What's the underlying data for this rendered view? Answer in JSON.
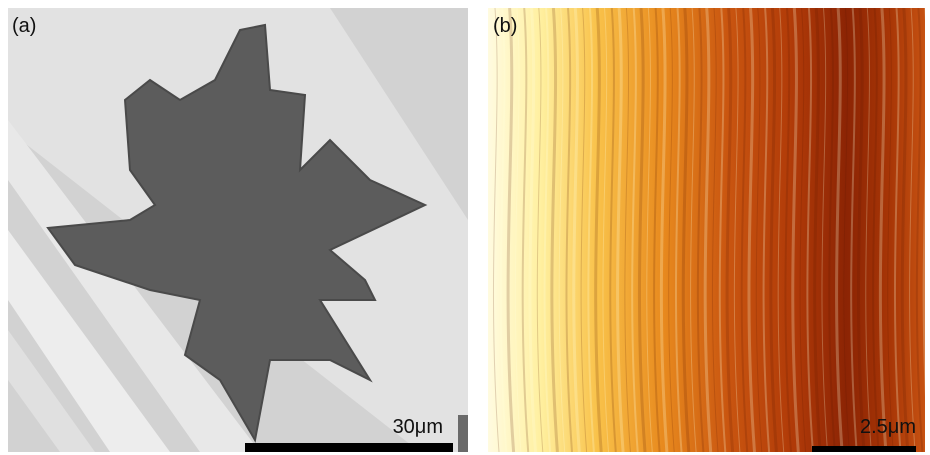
{
  "panels": [
    {
      "label": "(a)",
      "scale_bar": "30μm"
    },
    {
      "label": "(b)",
      "scale_bar": "2.5μm"
    }
  ]
}
